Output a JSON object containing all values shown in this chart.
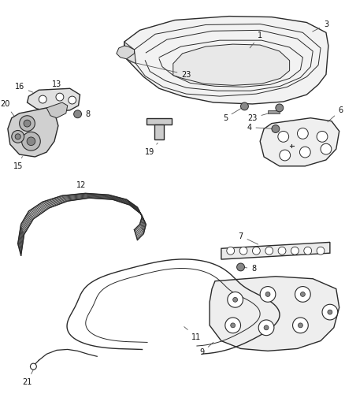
{
  "bg_color": "#ffffff",
  "line_color": "#2a2a2a",
  "label_color": "#111111",
  "label_fontsize": 7.0,
  "figsize": [
    4.38,
    5.33
  ],
  "dpi": 100
}
